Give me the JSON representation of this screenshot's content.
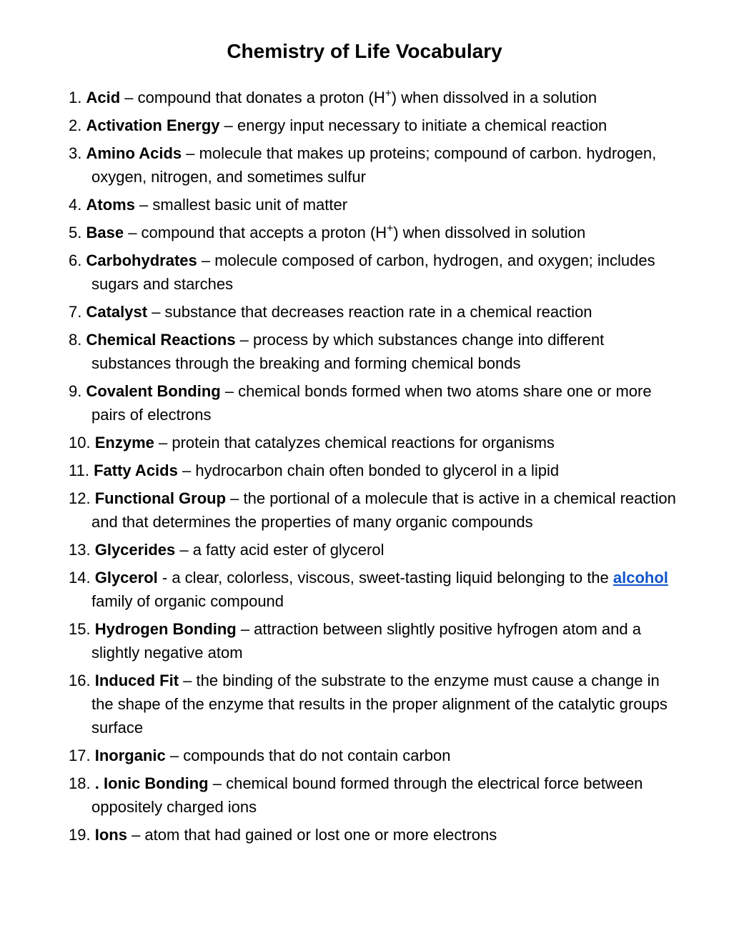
{
  "title": "Chemistry of Life Vocabulary",
  "items": [
    {
      "term": "Acid",
      "sep": " – ",
      "def_before": "compound that donates a proton (H",
      "sup": "+",
      "def_after": ") when dissolved in a solution"
    },
    {
      "term": "Activation Energy",
      "sep": " – ",
      "def": "energy input necessary to initiate a chemical reaction"
    },
    {
      "term": "Amino Acids",
      "sep": " – ",
      "def": "molecule that makes up proteins; compound of carbon. hydrogen, oxygen, nitrogen, and sometimes sulfur"
    },
    {
      "term": "Atoms",
      "sep": " – ",
      "def": "smallest basic unit of matter"
    },
    {
      "term": "Base",
      "sep": " – ",
      "def_before": "compound that accepts a proton (H",
      "sup": "+",
      "def_after": ") when dissolved in solution"
    },
    {
      "term": "Carbohydrates",
      "sep": " – ",
      "def": "molecule composed of carbon, hydrogen, and oxygen; includes sugars and starches"
    },
    {
      "term": "Catalyst",
      "sep": " – ",
      "def": "substance that decreases reaction rate in a chemical reaction"
    },
    {
      "term": "Chemical Reactions",
      "sep": " – ",
      "def": "process by which substances change into different substances through the breaking and forming chemical bonds"
    },
    {
      "term": "Covalent Bonding",
      "sep": " – ",
      "def": "chemical bonds formed when two atoms share one or more pairs of electrons"
    },
    {
      "term": "Enzyme",
      "sep": " – ",
      "def": "protein that catalyzes chemical reactions for organisms"
    },
    {
      "term": "Fatty Acids",
      "sep": " – ",
      "def": "hydrocarbon chain often bonded to glycerol in a lipid"
    },
    {
      "term": "Functional Group",
      "sep": " – ",
      "def": "the portional of a molecule that is active in a chemical reaction and that determines the properties of many organic compounds"
    },
    {
      "term": "Glycerides",
      "sep": " – ",
      "def": "a fatty acid ester of glycerol"
    },
    {
      "term": "Glycerol",
      "sep": " - ",
      "def_before": "a clear, colorless, viscous, sweet-tasting liquid belonging to the ",
      "link": "alcohol",
      "def_after": " family of organic compound"
    },
    {
      "term": "Hydrogen Bonding",
      "sep": " – ",
      "def": "attraction between slightly positive hyfrogen atom and a slightly negative atom"
    },
    {
      "term": "Induced Fit",
      "sep": " – ",
      "def": "the binding of the substrate to the enzyme must cause a change in the shape of the enzyme that results in the proper alignment of the catalytic groups surface"
    },
    {
      "term": "Inorganic",
      "sep": " – ",
      "def": "compounds that do not contain carbon"
    },
    {
      "term_prefix": ". ",
      "term": "Ionic Bonding",
      "sep": " – ",
      "def": "chemical bound formed through the electrical force between oppositely charged ions"
    },
    {
      "term": "Ions",
      "sep": " – ",
      "def": "atom that had gained or lost one or more electrons"
    }
  ]
}
